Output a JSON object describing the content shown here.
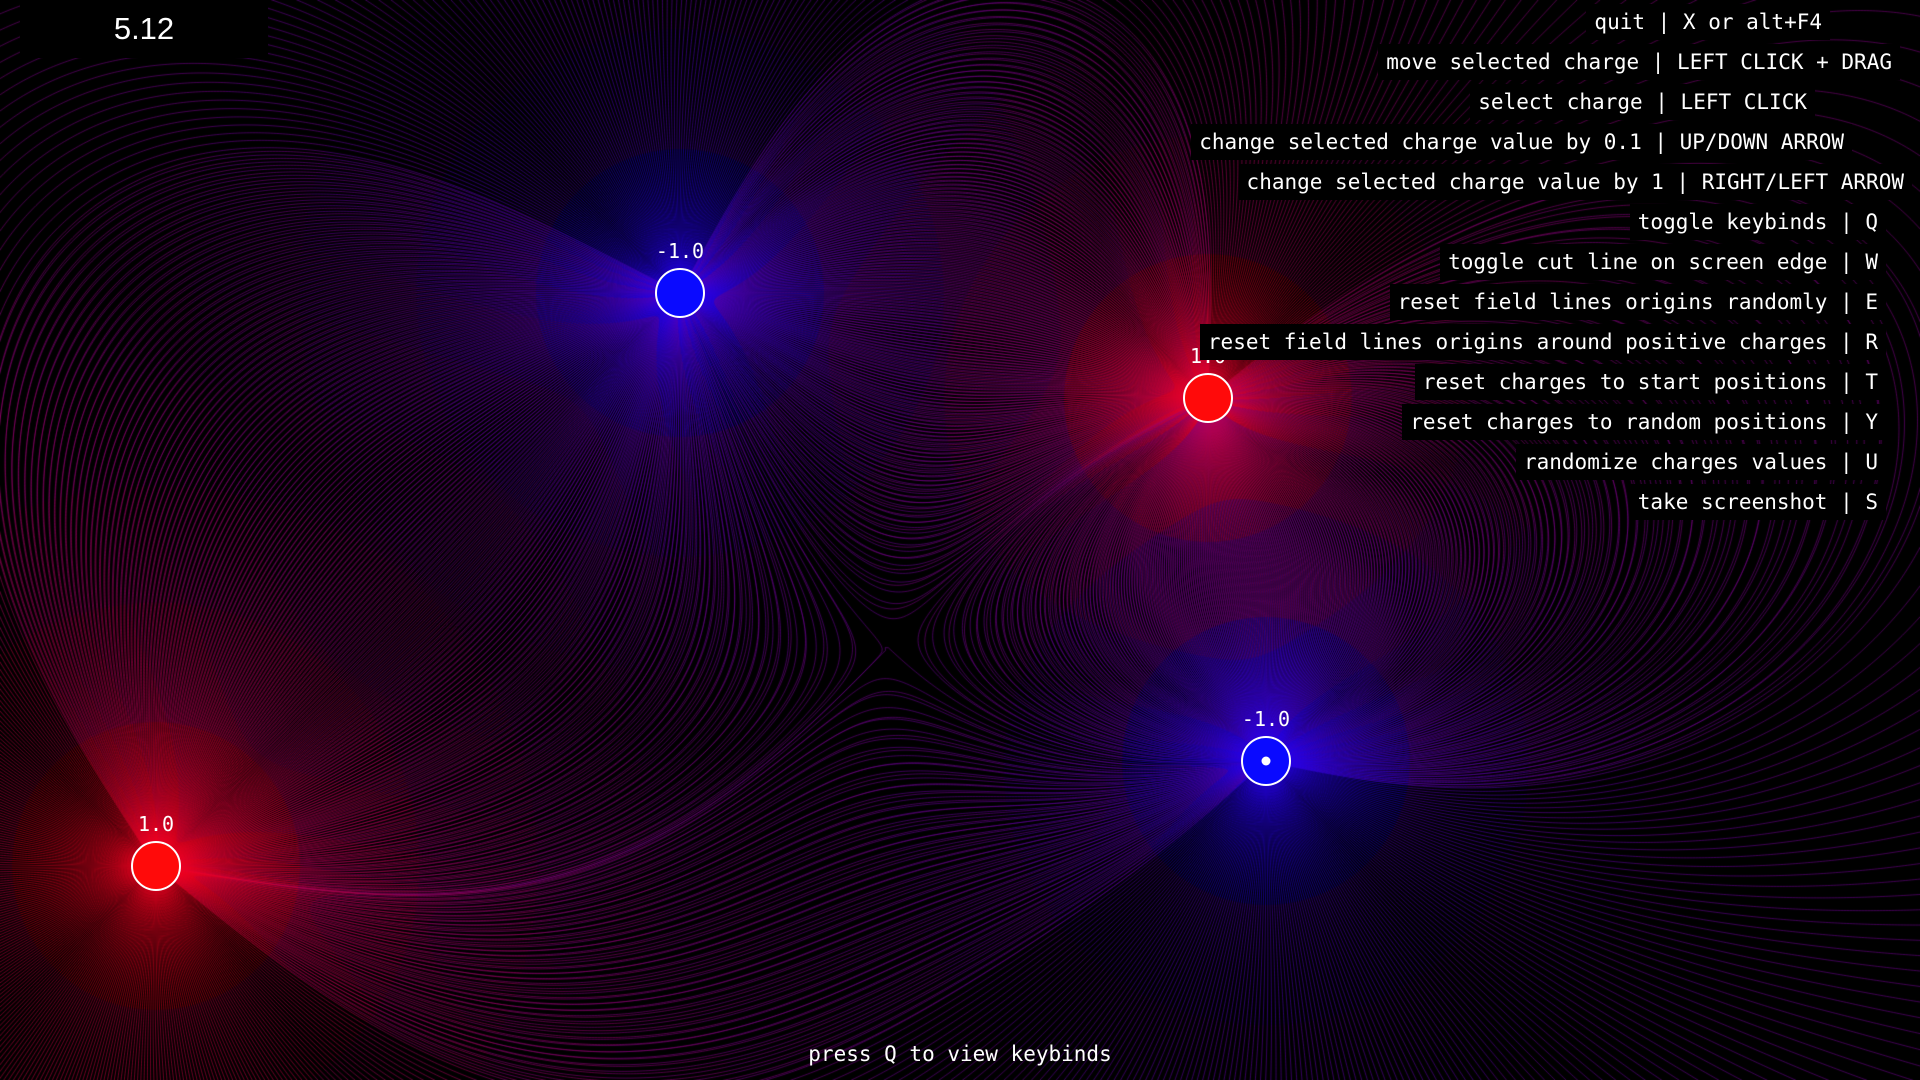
{
  "fps": "5.12",
  "keybinds": [
    "quit | X or alt+F4",
    "move selected charge | LEFT CLICK + DRAG",
    "select charge | LEFT CLICK",
    "change selected charge value by 0.1 | UP/DOWN ARROW",
    "change selected charge value by 1 | RIGHT/LEFT ARROW",
    "toggle keybinds | Q",
    "toggle cut line on screen edge | W",
    "reset field lines origins randomly | E",
    "reset field lines origins around positive charges | R",
    "reset charges to start positions | T",
    "reset charges to random positions | Y",
    "randomize charges values | U",
    "take screenshot | S"
  ],
  "charges": [
    {
      "value": "-1.0",
      "sign": "negative",
      "selected": false
    },
    {
      "value": "1.0",
      "sign": "positive",
      "selected": false
    },
    {
      "value": "-1.0",
      "sign": "negative",
      "selected": true
    },
    {
      "value": "1.0",
      "sign": "positive",
      "selected": false
    }
  ],
  "hint": "press Q to view keybinds",
  "colors": {
    "positive": "#ff0a0a",
    "negative": "#0a0aff",
    "background": "#000000",
    "text": "#ffffff"
  }
}
